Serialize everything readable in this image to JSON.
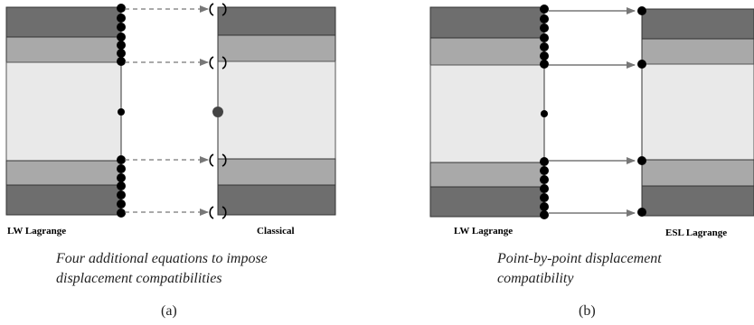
{
  "panel_a": {
    "left_label": "LW Lagrange",
    "right_label": "Classical",
    "caption_line1": "Four additional equations to impose",
    "caption_line2": "displacement compatibilities",
    "sublabel": "(a)"
  },
  "panel_b": {
    "left_label": "LW Lagrange",
    "right_label": "ESL Lagrange",
    "caption_line1": "Point-by-point displacement",
    "caption_line2": "compatibility",
    "sublabel": "(b)"
  },
  "colors": {
    "outer_layer": "#6e6e6e",
    "middle_layer": "#a9a9a9",
    "core_layer": "#e9e9e9",
    "node": "#000000",
    "center_node_classical": "#444444",
    "dashed_arrow": "#777777",
    "solid_arrow": "#777777"
  }
}
